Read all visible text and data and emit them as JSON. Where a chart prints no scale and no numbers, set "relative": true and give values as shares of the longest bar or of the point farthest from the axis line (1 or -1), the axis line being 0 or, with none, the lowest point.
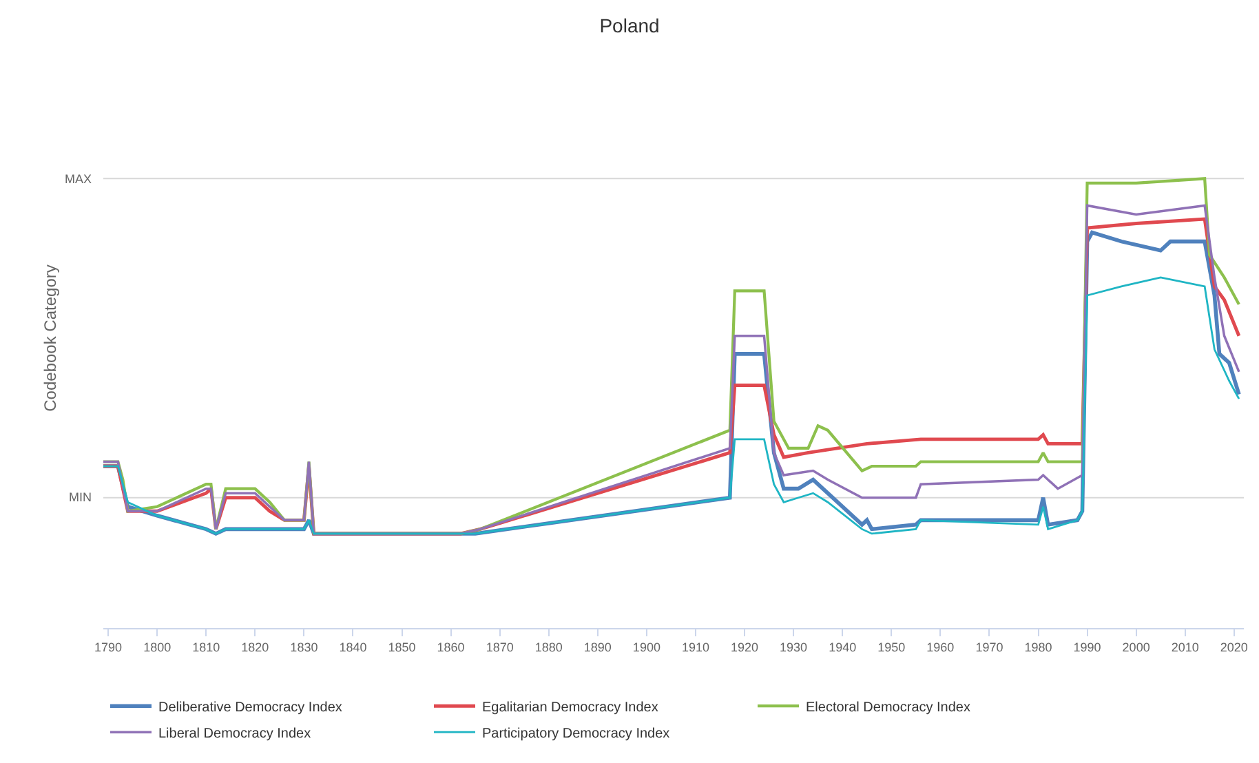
{
  "chart_data": {
    "type": "line",
    "title": "Poland",
    "ylabel": "Codebook Category",
    "relative": true,
    "xlim": [
      1789,
      2022
    ],
    "xticks": [
      1790,
      1800,
      1810,
      1820,
      1830,
      1840,
      1850,
      1860,
      1870,
      1880,
      1890,
      1900,
      1910,
      1920,
      1930,
      1940,
      1950,
      1960,
      1970,
      1980,
      1990,
      2000,
      2010,
      2020
    ],
    "ref_lines": [
      {
        "axis": "y",
        "value": 0.29,
        "label": "MIN",
        "color": "#d8d8d8"
      },
      {
        "axis": "y",
        "value": 1.0,
        "label": "MAX",
        "color": "#d8d8d8"
      }
    ],
    "legend": "bottom",
    "marker": "none",
    "line_style": "solid",
    "series": [
      {
        "name": "Deliberative Democracy Index",
        "color": "#4f81bd",
        "x": [
          1789,
          1792,
          1794,
          1800,
          1810,
          1812,
          1814,
          1830,
          1831,
          1832,
          1865,
          1917,
          1918,
          1924,
          1926,
          1928,
          1931,
          1934,
          1937,
          1944,
          1945,
          1946,
          1955,
          1956,
          1957,
          1980,
          1981,
          1982,
          1988,
          1989,
          1990,
          1991,
          1997,
          2005,
          2007,
          2014,
          2016,
          2017,
          2019,
          2021
        ],
        "values": [
          0.36,
          0.36,
          0.27,
          0.25,
          0.22,
          0.21,
          0.22,
          0.22,
          0.24,
          0.21,
          0.21,
          0.29,
          0.61,
          0.61,
          0.39,
          0.31,
          0.31,
          0.33,
          0.3,
          0.23,
          0.24,
          0.22,
          0.23,
          0.24,
          0.24,
          0.24,
          0.29,
          0.23,
          0.24,
          0.26,
          0.86,
          0.88,
          0.86,
          0.84,
          0.86,
          0.86,
          0.74,
          0.61,
          0.59,
          0.52
        ]
      },
      {
        "name": "Egalitarian Democracy Index",
        "color": "#e0494f",
        "x": [
          1789,
          1792,
          1794,
          1800,
          1810,
          1811,
          1812,
          1814,
          1820,
          1823,
          1826,
          1830,
          1831,
          1832,
          1862,
          1866,
          1917,
          1918,
          1924,
          1926,
          1928,
          1933,
          1945,
          1956,
          1980,
          1981,
          1982,
          1989,
          1990,
          2000,
          2014,
          2016,
          2018,
          2021
        ],
        "values": [
          0.36,
          0.36,
          0.26,
          0.26,
          0.3,
          0.31,
          0.22,
          0.29,
          0.29,
          0.26,
          0.24,
          0.24,
          0.36,
          0.21,
          0.21,
          0.22,
          0.39,
          0.54,
          0.54,
          0.43,
          0.38,
          0.39,
          0.41,
          0.42,
          0.42,
          0.43,
          0.41,
          0.41,
          0.89,
          0.9,
          0.91,
          0.76,
          0.73,
          0.65
        ]
      },
      {
        "name": "Electoral Democracy Index",
        "color": "#8dc04d",
        "x": [
          1789,
          1792,
          1793,
          1794,
          1800,
          1810,
          1811,
          1812,
          1814,
          1820,
          1823,
          1826,
          1830,
          1831,
          1832,
          1862,
          1866,
          1917,
          1918,
          1924,
          1926,
          1929,
          1933,
          1935,
          1937,
          1944,
          1946,
          1955,
          1956,
          1980,
          1981,
          1982,
          1989,
          1990,
          2000,
          2014,
          2015,
          2018,
          2021
        ],
        "values": [
          0.37,
          0.37,
          0.33,
          0.26,
          0.27,
          0.32,
          0.32,
          0.22,
          0.31,
          0.31,
          0.28,
          0.24,
          0.24,
          0.37,
          0.21,
          0.21,
          0.22,
          0.44,
          0.75,
          0.75,
          0.46,
          0.4,
          0.4,
          0.45,
          0.44,
          0.35,
          0.36,
          0.36,
          0.37,
          0.37,
          0.39,
          0.37,
          0.37,
          0.99,
          0.99,
          1.0,
          0.83,
          0.78,
          0.72
        ]
      },
      {
        "name": "Liberal Democracy Index",
        "color": "#8f71b6",
        "x": [
          1789,
          1792,
          1794,
          1800,
          1810,
          1811,
          1812,
          1814,
          1820,
          1823,
          1826,
          1830,
          1831,
          1832,
          1862,
          1866,
          1917,
          1918,
          1924,
          1926,
          1928,
          1934,
          1937,
          1944,
          1955,
          1956,
          1980,
          1981,
          1984,
          1989,
          1990,
          2000,
          2014,
          2016,
          2018,
          2021
        ],
        "values": [
          0.37,
          0.37,
          0.26,
          0.26,
          0.31,
          0.31,
          0.22,
          0.3,
          0.3,
          0.27,
          0.24,
          0.24,
          0.37,
          0.21,
          0.21,
          0.22,
          0.4,
          0.65,
          0.65,
          0.39,
          0.34,
          0.35,
          0.33,
          0.29,
          0.29,
          0.32,
          0.33,
          0.34,
          0.31,
          0.34,
          0.94,
          0.92,
          0.94,
          0.78,
          0.65,
          0.57
        ]
      },
      {
        "name": "Participatory Democracy Index",
        "color": "#1fb5c4",
        "x": [
          1789,
          1792,
          1794,
          1800,
          1810,
          1812,
          1814,
          1830,
          1831,
          1832,
          1865,
          1917,
          1918,
          1924,
          1926,
          1928,
          1931,
          1934,
          1937,
          1944,
          1946,
          1955,
          1956,
          1980,
          1981,
          1982,
          1988,
          1989,
          1990,
          1997,
          2005,
          2014,
          2016,
          2019,
          2021
        ],
        "values": [
          0.36,
          0.36,
          0.28,
          0.25,
          0.22,
          0.21,
          0.22,
          0.22,
          0.24,
          0.21,
          0.21,
          0.29,
          0.42,
          0.42,
          0.32,
          0.28,
          0.29,
          0.3,
          0.28,
          0.22,
          0.21,
          0.22,
          0.24,
          0.23,
          0.27,
          0.22,
          0.24,
          0.26,
          0.74,
          0.76,
          0.78,
          0.76,
          0.62,
          0.55,
          0.51
        ]
      }
    ]
  }
}
